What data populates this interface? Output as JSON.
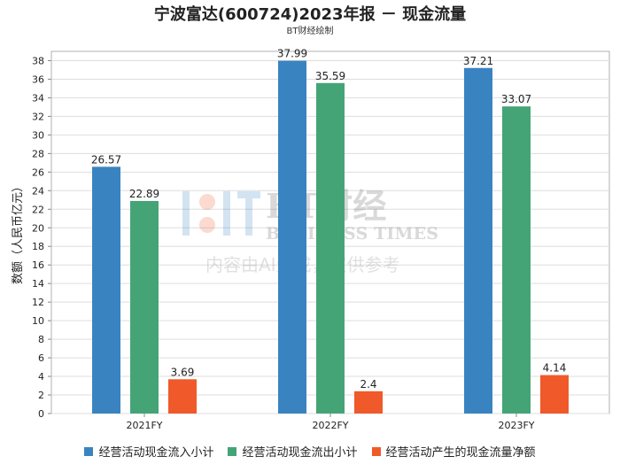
{
  "chart_data": {
    "type": "bar",
    "title": "宁波富达(600724)2023年报 － 现金流量",
    "subtitle": "BT财经绘制",
    "ylabel": "数额（人民币亿元）",
    "xlabel": "",
    "categories": [
      "2021FY",
      "2022FY",
      "2023FY"
    ],
    "ylim": [
      0,
      39
    ],
    "yticks": [
      0,
      2,
      4,
      6,
      8,
      10,
      12,
      14,
      16,
      18,
      20,
      22,
      24,
      26,
      28,
      30,
      32,
      34,
      36,
      38
    ],
    "grid": true,
    "legend_position": "bottom",
    "series": [
      {
        "name": "经营活动现金流入小计",
        "color": "#3a83c1",
        "values": [
          26.57,
          37.99,
          37.21
        ],
        "labels": [
          "26.57",
          "37.99",
          "37.21"
        ]
      },
      {
        "name": "经营活动现金流出小计",
        "color": "#45a476",
        "values": [
          22.89,
          35.59,
          33.07
        ],
        "labels": [
          "22.89",
          "35.59",
          "33.07"
        ]
      },
      {
        "name": "经营活动产生的现金流量净额",
        "color": "#f0592a",
        "values": [
          3.69,
          2.4,
          4.14
        ],
        "labels": [
          "3.69",
          "2.4",
          "4.14"
        ]
      }
    ]
  },
  "watermark": {
    "brand": "BT财经",
    "brand_en": "BUSINESS TIMES",
    "notice": "内容由AI生成，仅供参考"
  }
}
